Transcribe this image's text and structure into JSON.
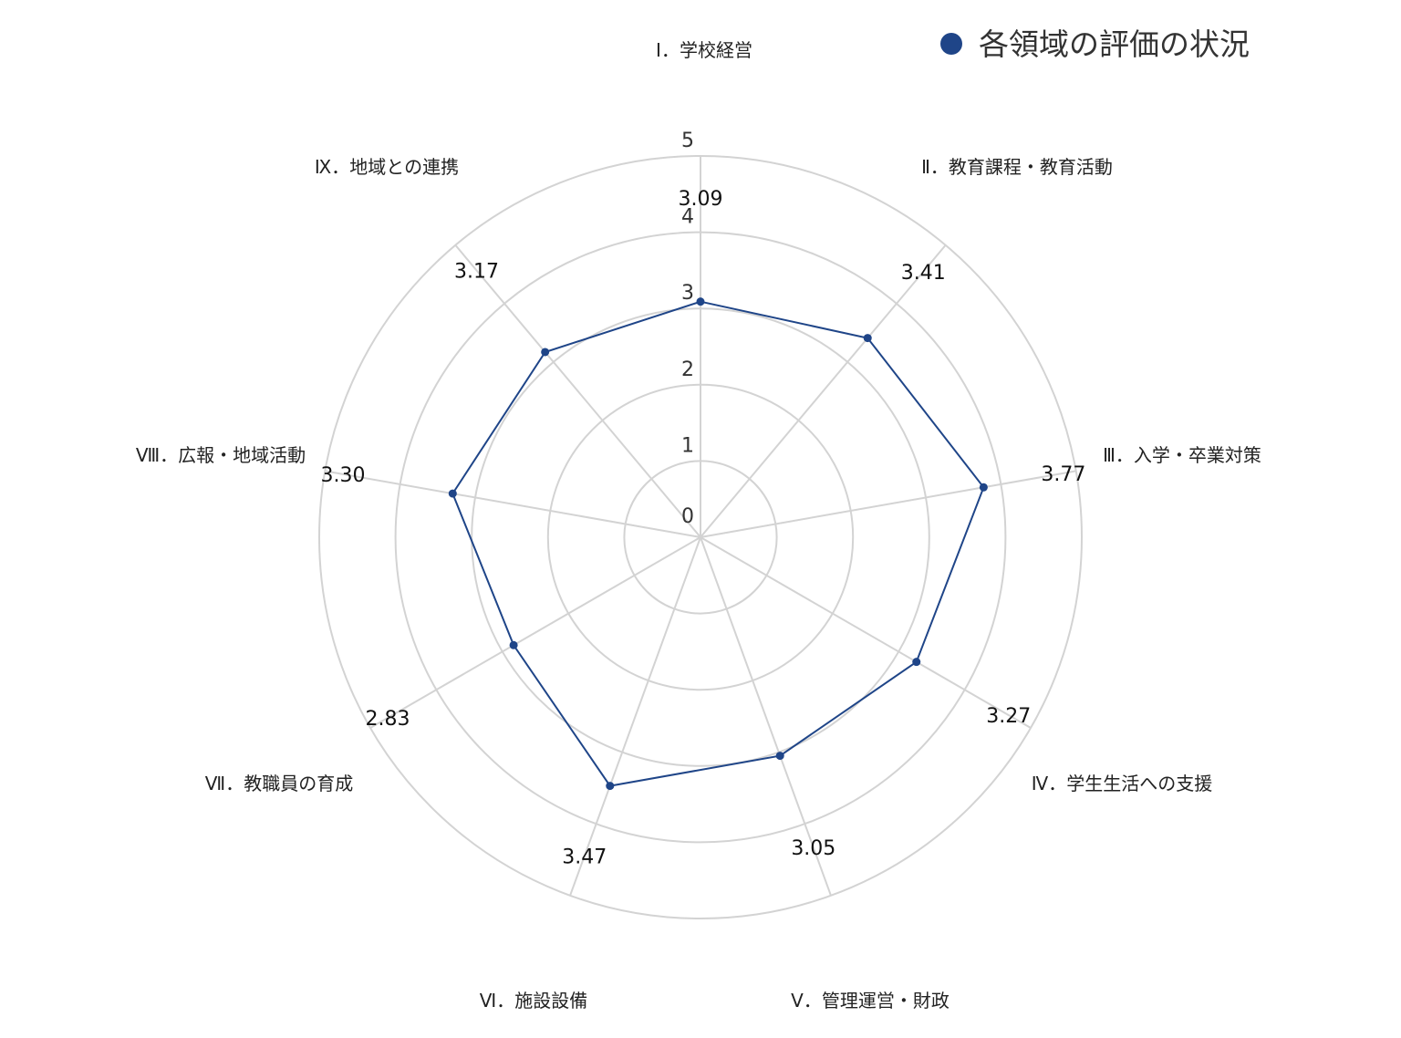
{
  "chart_data": {
    "type": "radar",
    "legend": {
      "position": "top-right",
      "entries": [
        "各領域の評価の状況"
      ]
    },
    "axes": [
      "Ⅰ．学校経営",
      "Ⅱ．教育課程・教育活動",
      "Ⅲ．入学・卒業対策",
      "Ⅳ．学生生活への支援",
      "Ⅴ．管理運営・財政",
      "Ⅵ．施設設備",
      "Ⅶ．教職員の育成",
      "Ⅷ．広報・地域活動",
      "Ⅸ．地域との連携"
    ],
    "series": [
      {
        "name": "各領域の評価の状況",
        "values": [
          3.09,
          3.41,
          3.77,
          3.27,
          3.05,
          3.47,
          2.83,
          3.3,
          3.17
        ],
        "value_labels": [
          "3.09",
          "3.41",
          "3.77",
          "3.27",
          "3.05",
          "3.47",
          "2.83",
          "3.30",
          "3.17"
        ],
        "color": "#1f4588"
      }
    ],
    "range": [
      0,
      5
    ],
    "ticks": [
      "0",
      "1",
      "2",
      "3",
      "4",
      "5"
    ],
    "grid": true,
    "grid_color": "#d3d3d3"
  }
}
